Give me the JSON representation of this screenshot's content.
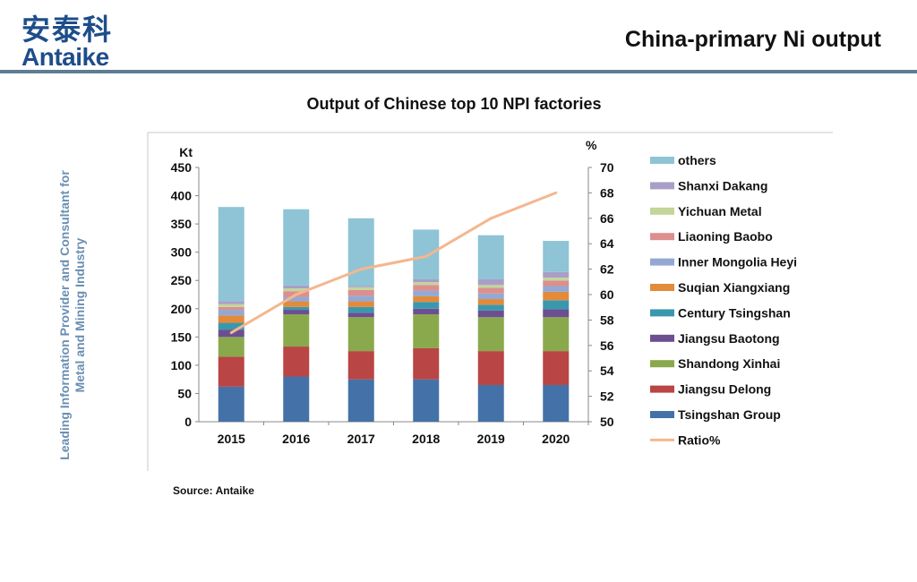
{
  "header": {
    "logo_cn": "安泰科",
    "logo_en": "Antaike",
    "title": "China-primary Ni output"
  },
  "side_tagline": {
    "line1": "Leading Information Provider and Consultant for",
    "line2": "Metal and Mining Industry"
  },
  "source": "Source: Antaike",
  "chart_data": {
    "type": "bar",
    "stacked": true,
    "title": "Output of Chinese top 10 NPI factories",
    "ylabel": "Kt",
    "y2label": "%",
    "ylim": [
      0,
      450
    ],
    "yticks": [
      "0",
      "50",
      "100",
      "150",
      "200",
      "250",
      "300",
      "350",
      "400",
      "450"
    ],
    "y2lim": [
      50,
      70
    ],
    "y2ticks": [
      "50",
      "52",
      "54",
      "56",
      "58",
      "60",
      "62",
      "64",
      "66",
      "68",
      "70"
    ],
    "categories": [
      "2015",
      "2016",
      "2017",
      "2018",
      "2019",
      "2020"
    ],
    "series": [
      {
        "name": "Tsingshan  Group",
        "color": "#4472a8",
        "values": [
          62,
          80,
          75,
          75,
          65,
          65
        ]
      },
      {
        "name": "Jiangsu Delong",
        "color": "#b94545",
        "values": [
          53,
          53,
          50,
          55,
          60,
          60
        ]
      },
      {
        "name": "Shandong Xinhai",
        "color": "#8aa94c",
        "values": [
          35,
          57,
          60,
          60,
          60,
          60
        ]
      },
      {
        "name": "Jiangsu Baotong",
        "color": "#6b4f91",
        "values": [
          13,
          8,
          8,
          10,
          12,
          14
        ]
      },
      {
        "name": "Century Tsingshan",
        "color": "#3a98ad",
        "values": [
          12,
          5,
          10,
          12,
          10,
          16
        ]
      },
      {
        "name": "Suqian Xiangxiang",
        "color": "#e38a3b",
        "values": [
          13,
          10,
          10,
          10,
          10,
          15
        ]
      },
      {
        "name": "Inner Mongolia Heyi",
        "color": "#93a9d4",
        "values": [
          10,
          8,
          10,
          10,
          10,
          10
        ]
      },
      {
        "name": "Liaoning Baobo",
        "color": "#dc8f8e",
        "values": [
          5,
          10,
          10,
          10,
          10,
          10
        ]
      },
      {
        "name": "Yichuan Metal",
        "color": "#c3d59b",
        "values": [
          5,
          5,
          5,
          5,
          5,
          5
        ]
      },
      {
        "name": "Shanxi Dakang",
        "color": "#a99fc6",
        "values": [
          5,
          5,
          2,
          5,
          10,
          10
        ]
      },
      {
        "name": "others",
        "color": "#8fc3d6",
        "values": [
          167,
          135,
          120,
          88,
          78,
          55
        ]
      }
    ],
    "line_series": {
      "name": "Ratio%",
      "color": "#f4b78e",
      "axis": "right",
      "values": [
        57,
        60,
        62,
        63,
        66,
        68
      ]
    },
    "legend_position": "right"
  }
}
